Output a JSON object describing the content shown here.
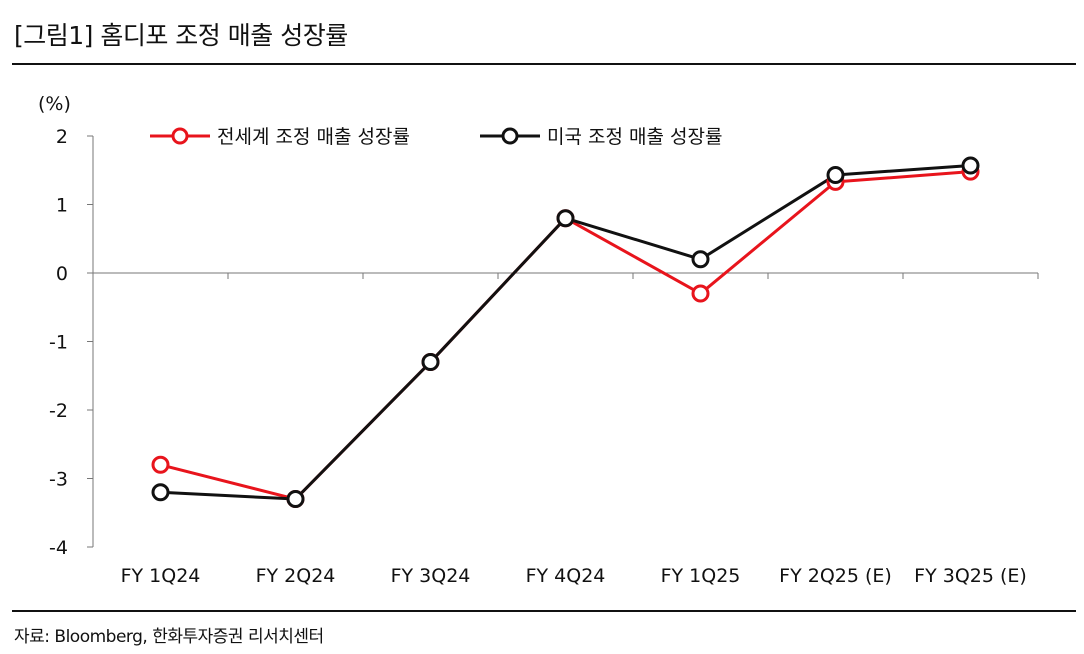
{
  "title": "[그림1] 홈디포 조정 매출 성장률",
  "source": "자료: Bloomberg, 한화투자증권 리서치센터",
  "chart_data": {
    "type": "line",
    "title": "",
    "ylabel": "(%)",
    "xlabel": "",
    "ylim": [
      -4,
      2
    ],
    "yticks": [
      2,
      1,
      0,
      -1,
      -2,
      -3,
      -4
    ],
    "categories": [
      "FY 1Q24",
      "FY 2Q24",
      "FY 3Q24",
      "FY 4Q24",
      "FY 1Q25",
      "FY 2Q25 (E)",
      "FY 3Q25 (E)"
    ],
    "series": [
      {
        "name": "전세계 조정 매출 성장률",
        "color": "#e8141c",
        "values": [
          -2.8,
          -3.3,
          -1.3,
          0.8,
          -0.3,
          1.33,
          1.48
        ]
      },
      {
        "name": "미국 조정 매출 성장률",
        "color": "#111111",
        "values": [
          -3.2,
          -3.3,
          -1.3,
          0.8,
          0.2,
          1.43,
          1.57
        ]
      }
    ],
    "legend_position": "top",
    "grid": false
  }
}
